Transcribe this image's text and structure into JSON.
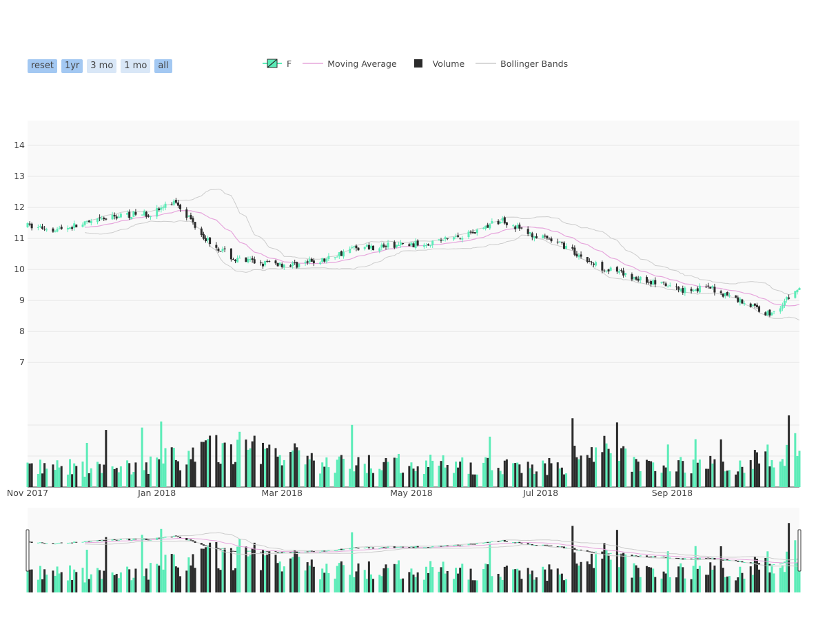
{
  "range_selector": {
    "buttons": [
      {
        "label": "reset",
        "active": true
      },
      {
        "label": "1yr",
        "active": true
      },
      {
        "label": "3 mo",
        "active": false
      },
      {
        "label": "1 mo",
        "active": false
      },
      {
        "label": "all",
        "active": true
      }
    ]
  },
  "legend": {
    "items": [
      {
        "label": "F",
        "kind": "candlestick"
      },
      {
        "label": "Moving Average",
        "kind": "line"
      },
      {
        "label": "Volume",
        "kind": "square"
      },
      {
        "label": "Bollinger Bands",
        "kind": "line"
      }
    ]
  },
  "colors": {
    "increasing": "#5cecb8",
    "decreasing": "#2b2b2b",
    "moving_average": "#e6a5dc",
    "bollinger": "#cccccc",
    "plot_bg": "#f9f9f9",
    "grid": "#e8e8e8"
  },
  "chart_data": {
    "type": "candlestick",
    "x_range": [
      "2017-11-01",
      "2018-10-31"
    ],
    "x_ticks": [
      {
        "date": "2017-11-01",
        "label": "Nov 2017"
      },
      {
        "date": "2018-01-01",
        "label": "Jan 2018"
      },
      {
        "date": "2018-03-01",
        "label": "Mar 2018"
      },
      {
        "date": "2018-05-01",
        "label": "May 2018"
      },
      {
        "date": "2018-07-01",
        "label": "Jul 2018"
      },
      {
        "date": "2018-09-01",
        "label": "Sep 2018"
      }
    ],
    "y_ticks": [
      7,
      8,
      9,
      10,
      11,
      12,
      13,
      14
    ],
    "price_ylim": [
      6.25,
      14.8
    ],
    "volume_ylim": [
      0,
      1.0
    ],
    "range_slider": true,
    "price_series": [
      [
        "2017-11-01",
        11.4
      ],
      [
        "2017-11-15",
        11.3
      ],
      [
        "2017-12-01",
        11.5
      ],
      [
        "2017-12-15",
        11.75
      ],
      [
        "2017-12-29",
        11.8
      ],
      [
        "2018-01-10",
        12.2
      ],
      [
        "2018-01-24",
        11.0
      ],
      [
        "2018-02-07",
        10.3
      ],
      [
        "2018-02-21",
        10.2
      ],
      [
        "2018-03-07",
        10.15
      ],
      [
        "2018-03-21",
        10.3
      ],
      [
        "2018-04-04",
        10.7
      ],
      [
        "2018-04-18",
        10.75
      ],
      [
        "2018-05-02",
        10.8
      ],
      [
        "2018-05-16",
        10.95
      ],
      [
        "2018-05-30",
        11.2
      ],
      [
        "2018-06-13",
        11.6
      ],
      [
        "2018-06-27",
        11.1
      ],
      [
        "2018-07-11",
        10.8
      ],
      [
        "2018-07-25",
        10.2
      ],
      [
        "2018-08-08",
        9.85
      ],
      [
        "2018-08-22",
        9.6
      ],
      [
        "2018-09-05",
        9.35
      ],
      [
        "2018-09-19",
        9.4
      ],
      [
        "2018-10-03",
        9.0
      ],
      [
        "2018-10-17",
        8.55
      ],
      [
        "2018-10-31",
        9.4
      ]
    ],
    "volume_envelope": [
      [
        "2017-11-01",
        0.28
      ],
      [
        "2017-12-15",
        0.25
      ],
      [
        "2018-01-24",
        0.5
      ],
      [
        "2018-02-21",
        0.55
      ],
      [
        "2018-03-21",
        0.3
      ],
      [
        "2018-04-18",
        0.33
      ],
      [
        "2018-05-30",
        0.3
      ],
      [
        "2018-07-11",
        0.28
      ],
      [
        "2018-07-25",
        0.55
      ],
      [
        "2018-08-22",
        0.3
      ],
      [
        "2018-10-03",
        0.3
      ],
      [
        "2018-10-31",
        0.55
      ]
    ]
  }
}
